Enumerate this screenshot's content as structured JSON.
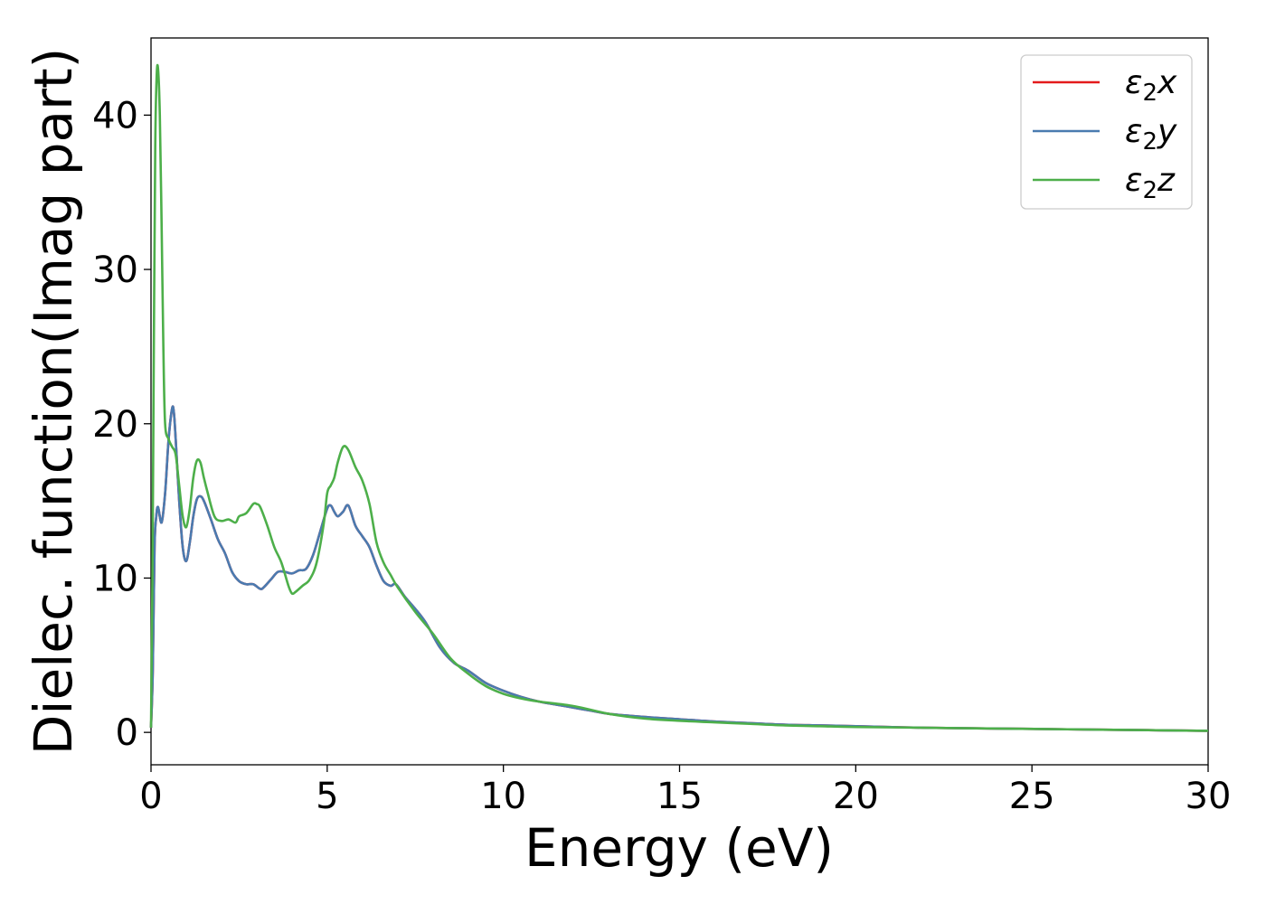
{
  "chart_data": {
    "type": "line",
    "title": "",
    "xlabel": "Energy (eV)",
    "ylabel": "Dielec. function(Imag part)",
    "xlim": [
      0,
      30
    ],
    "ylim": [
      -2.1,
      45
    ],
    "xticks": [
      0,
      5,
      10,
      15,
      20,
      25,
      30
    ],
    "yticks": [
      0,
      10,
      20,
      30,
      40
    ],
    "grid": false,
    "legend_position": "top-right",
    "series": [
      {
        "name": "ε₂x",
        "legend_main": "ε",
        "legend_sub": "2",
        "legend_axis": "x",
        "color": "#e41a1c",
        "x": [
          0,
          0.05,
          0.1,
          0.15,
          0.2,
          0.3,
          0.4,
          0.5,
          0.6,
          0.65,
          0.7,
          0.8,
          0.9,
          1.0,
          1.1,
          1.2,
          1.3,
          1.4,
          1.5,
          1.7,
          1.9,
          2.1,
          2.3,
          2.5,
          2.7,
          2.9,
          3.1,
          3.2,
          3.4,
          3.6,
          3.8,
          4.0,
          4.2,
          4.4,
          4.6,
          4.8,
          5.0,
          5.1,
          5.2,
          5.3,
          5.45,
          5.6,
          5.8,
          6.0,
          6.2,
          6.4,
          6.6,
          6.8,
          6.95,
          7.2,
          7.5,
          7.8,
          8.2,
          8.6,
          9.0,
          9.5,
          10,
          10.5,
          11,
          11.5,
          12,
          12.5,
          13,
          14,
          15,
          16,
          17,
          18,
          19,
          20,
          22,
          24,
          26,
          28,
          30
        ],
        "values": [
          0.3,
          4,
          12,
          14,
          14.6,
          13.6,
          15.5,
          19,
          21,
          20.7,
          19,
          15,
          12,
          11.1,
          12.3,
          14,
          15.1,
          15.3,
          15,
          13.8,
          12.5,
          11.6,
          10.4,
          9.8,
          9.6,
          9.6,
          9.3,
          9.4,
          9.9,
          10.4,
          10.4,
          10.3,
          10.5,
          10.6,
          11.5,
          13,
          14.5,
          14.7,
          14.3,
          14.0,
          14.3,
          14.7,
          13.4,
          12.7,
          12.0,
          10.8,
          9.8,
          9.5,
          9.6,
          8.8,
          8.0,
          7.1,
          5.5,
          4.5,
          4.0,
          3.2,
          2.7,
          2.3,
          2.0,
          1.8,
          1.6,
          1.4,
          1.2,
          1.0,
          0.85,
          0.7,
          0.6,
          0.5,
          0.45,
          0.4,
          0.3,
          0.25,
          0.2,
          0.15,
          0.1
        ]
      },
      {
        "name": "ε₂y",
        "legend_main": "ε",
        "legend_sub": "2",
        "legend_axis": "y",
        "color": "#4a7bb0",
        "x": [
          0,
          0.05,
          0.1,
          0.15,
          0.2,
          0.3,
          0.4,
          0.5,
          0.6,
          0.65,
          0.7,
          0.8,
          0.9,
          1.0,
          1.1,
          1.2,
          1.3,
          1.4,
          1.5,
          1.7,
          1.9,
          2.1,
          2.3,
          2.5,
          2.7,
          2.9,
          3.1,
          3.2,
          3.4,
          3.6,
          3.8,
          4.0,
          4.2,
          4.4,
          4.6,
          4.8,
          5.0,
          5.1,
          5.2,
          5.3,
          5.45,
          5.6,
          5.8,
          6.0,
          6.2,
          6.4,
          6.6,
          6.8,
          6.95,
          7.2,
          7.5,
          7.8,
          8.2,
          8.6,
          9.0,
          9.5,
          10,
          10.5,
          11,
          11.5,
          12,
          12.5,
          13,
          14,
          15,
          16,
          17,
          18,
          19,
          20,
          22,
          24,
          26,
          28,
          30
        ],
        "values": [
          0.3,
          4,
          12,
          14,
          14.6,
          13.6,
          15.5,
          19,
          21,
          20.7,
          19,
          15,
          12,
          11.1,
          12.3,
          14,
          15.1,
          15.3,
          15,
          13.8,
          12.5,
          11.6,
          10.4,
          9.8,
          9.6,
          9.6,
          9.3,
          9.4,
          9.9,
          10.4,
          10.4,
          10.3,
          10.5,
          10.6,
          11.5,
          13,
          14.5,
          14.7,
          14.3,
          14.0,
          14.3,
          14.7,
          13.4,
          12.7,
          12.0,
          10.8,
          9.8,
          9.5,
          9.6,
          8.8,
          8.0,
          7.1,
          5.5,
          4.5,
          4.0,
          3.2,
          2.7,
          2.3,
          2.0,
          1.8,
          1.6,
          1.4,
          1.2,
          1.0,
          0.85,
          0.7,
          0.6,
          0.5,
          0.45,
          0.4,
          0.3,
          0.25,
          0.2,
          0.15,
          0.1
        ]
      },
      {
        "name": "ε₂z",
        "legend_main": "ε",
        "legend_sub": "2",
        "legend_axis": "z",
        "color": "#4daf4a",
        "x": [
          0,
          0.04,
          0.08,
          0.12,
          0.16,
          0.2,
          0.25,
          0.3,
          0.35,
          0.4,
          0.5,
          0.6,
          0.7,
          0.8,
          0.9,
          1.0,
          1.1,
          1.2,
          1.3,
          1.4,
          1.5,
          1.6,
          1.8,
          2.0,
          2.2,
          2.4,
          2.5,
          2.7,
          2.9,
          3.0,
          3.1,
          3.3,
          3.5,
          3.7,
          3.9,
          4.0,
          4.1,
          4.3,
          4.5,
          4.7,
          4.9,
          5.0,
          5.1,
          5.2,
          5.3,
          5.45,
          5.6,
          5.8,
          6.0,
          6.2,
          6.4,
          6.6,
          6.8,
          7.0,
          7.5,
          8.0,
          8.5,
          9.0,
          9.5,
          10,
          10.5,
          11,
          12,
          13,
          14,
          15,
          16,
          17,
          18,
          19,
          20,
          22,
          24,
          26,
          28,
          30
        ],
        "values": [
          0.3,
          10,
          25,
          38,
          42.5,
          43,
          40,
          33,
          25,
          20,
          19,
          18.5,
          18,
          16,
          14,
          13.3,
          14.5,
          16.5,
          17.6,
          17.5,
          16.5,
          15.6,
          14,
          13.7,
          13.8,
          13.6,
          14,
          14.2,
          14.8,
          14.8,
          14.6,
          13.4,
          12,
          11,
          9.5,
          9.0,
          9.1,
          9.5,
          9.9,
          11,
          13.5,
          15.5,
          16.0,
          16.5,
          17.5,
          18.5,
          18.3,
          17.2,
          16.3,
          14.8,
          12.3,
          11,
          10.2,
          9.4,
          7.8,
          6.4,
          4.8,
          3.8,
          3.0,
          2.5,
          2.2,
          2.0,
          1.7,
          1.2,
          0.9,
          0.75,
          0.65,
          0.55,
          0.45,
          0.4,
          0.35,
          0.3,
          0.25,
          0.2,
          0.15,
          0.1
        ]
      }
    ]
  }
}
